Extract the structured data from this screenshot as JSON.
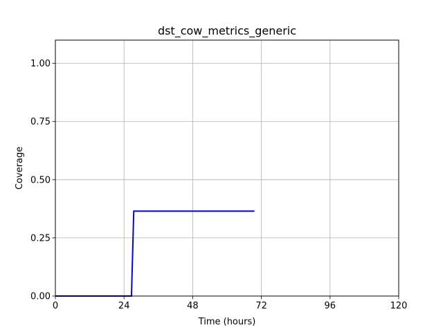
{
  "chart_data": {
    "type": "line",
    "title": "dst_cow_metrics_generic",
    "xlabel": "Time (hours)",
    "ylabel": "Coverage",
    "xlim": [
      0,
      120
    ],
    "ylim": [
      0,
      1.1
    ],
    "x_ticks": [
      0,
      24,
      48,
      72,
      96,
      120
    ],
    "x_tick_labels": [
      "0",
      "24",
      "48",
      "72",
      "96",
      "120"
    ],
    "y_ticks": [
      0,
      0.25,
      0.5,
      0.75,
      1.0
    ],
    "y_tick_labels": [
      "0.00",
      "0.25",
      "0.50",
      "0.75",
      "1.00"
    ],
    "grid": true,
    "legend": "none",
    "series": [
      {
        "color": "#0000ff",
        "x": [
          0,
          26.6,
          27.4,
          69.6
        ],
        "y": [
          0,
          0,
          0.365,
          0.365
        ]
      }
    ]
  }
}
